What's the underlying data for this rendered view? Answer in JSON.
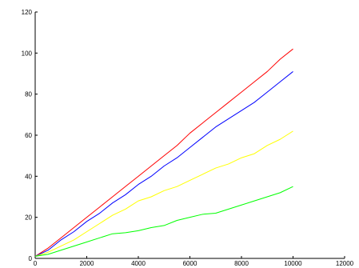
{
  "chart_data": {
    "type": "line",
    "title": "",
    "xlabel": "",
    "ylabel": "",
    "xlim": [
      0,
      12000
    ],
    "ylim": [
      0,
      120
    ],
    "x_ticks": [
      0,
      2000,
      4000,
      6000,
      8000,
      10000,
      12000
    ],
    "y_ticks": [
      0,
      20,
      40,
      60,
      80,
      100,
      120
    ],
    "x_tick_labels": [
      "0",
      "2000",
      "4000",
      "6000",
      "8000",
      "10000",
      "12000"
    ],
    "y_tick_labels": [
      "0",
      "20",
      "40",
      "60",
      "80",
      "100",
      "120"
    ],
    "grid": false,
    "legend": "none",
    "series": [
      {
        "color": "#ff0000",
        "x": [
          0,
          500,
          1000,
          1500,
          2000,
          2500,
          3000,
          3500,
          4000,
          4500,
          5000,
          5500,
          6000,
          6500,
          7000,
          7500,
          8000,
          8500,
          9000,
          9500,
          10000
        ],
        "values": [
          1,
          5,
          10,
          15,
          20,
          25,
          30,
          35,
          40,
          45,
          50,
          55,
          61,
          66,
          71,
          76,
          81,
          86,
          91,
          97,
          102
        ]
      },
      {
        "color": "#0000ff",
        "x": [
          0,
          500,
          1000,
          1500,
          2000,
          2500,
          3000,
          3500,
          4000,
          4500,
          5000,
          5500,
          6000,
          6500,
          7000,
          7500,
          8000,
          8500,
          9000,
          9500,
          10000
        ],
        "values": [
          1,
          4,
          9,
          13,
          18,
          22,
          27,
          31,
          36,
          40,
          45,
          49,
          54,
          59,
          64,
          68,
          72,
          76,
          81,
          86,
          91
        ]
      },
      {
        "color": "#ffff00",
        "x": [
          0,
          500,
          1000,
          1500,
          2000,
          2500,
          3000,
          3500,
          4000,
          4500,
          5000,
          5500,
          6000,
          6500,
          7000,
          7500,
          8000,
          8500,
          9000,
          9500,
          10000
        ],
        "values": [
          1,
          3,
          6,
          9,
          13,
          17,
          21,
          24,
          28,
          30,
          33,
          35,
          38,
          41,
          44,
          46,
          49,
          51,
          55,
          58,
          62
        ]
      },
      {
        "color": "#00ff00",
        "x": [
          0,
          500,
          1000,
          1500,
          2000,
          2500,
          3000,
          3500,
          4000,
          4500,
          5000,
          5500,
          6000,
          6500,
          7000,
          7500,
          8000,
          8500,
          9000,
          9500,
          10000
        ],
        "values": [
          1,
          2,
          4,
          6,
          8,
          10,
          12,
          12.5,
          13.5,
          15,
          16,
          18.5,
          20,
          21.5,
          22,
          24,
          26,
          28,
          30,
          32,
          35
        ]
      }
    ]
  }
}
